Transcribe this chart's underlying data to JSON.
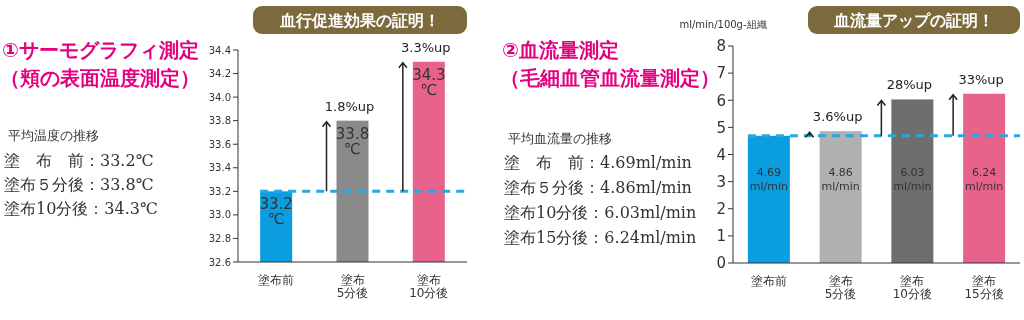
{
  "chart_data": [
    {
      "type": "bar",
      "title": "①サーモグラフィ測定",
      "subtitle": "（頬の表面温度測定）",
      "categories": [
        "塗布前",
        "塗布\n5分後",
        "塗布\n10分後"
      ],
      "values": [
        33.2,
        33.8,
        34.3
      ],
      "colors": [
        "#0a9de0",
        "#8a8a8a",
        "#e8638c"
      ],
      "value_labels": [
        "33.2\n℃",
        "33.8\n℃",
        "34.3\n℃"
      ],
      "ylim": [
        32.6,
        34.4
      ],
      "yticks": [
        {
          "value": 32.6,
          "label": "32.6"
        },
        {
          "value": 32.8,
          "label": "32.8"
        },
        {
          "value": 33,
          "label": "33.0"
        },
        {
          "value": 33.2,
          "label": "33.2"
        },
        {
          "value": 33.4,
          "label": "33.4"
        },
        {
          "value": 33.6,
          "label": "33.6"
        },
        {
          "value": 33.8,
          "label": "33.8"
        },
        {
          "value": 34,
          "label": "34.0"
        },
        {
          "value": 34.2,
          "label": "34.2"
        },
        {
          "value": 34.4,
          "label": "34.4"
        }
      ],
      "ref_lines": [
        {
          "axis": "y",
          "value": 33.2,
          "color": "#29a8e0",
          "line_style": "dashed"
        }
      ],
      "annotations": [
        "血行促進効果の証明！",
        "平均温度の推移",
        "塗　布　前：33.2℃",
        "塗布５分後：33.8℃",
        "塗布10分後：34.3℃",
        {
          "text": "1.8%up",
          "x": "塗布\n5分後",
          "y": 33.8
        },
        {
          "text": "3.3%up",
          "x": "塗布\n10分後",
          "y": 34.3
        }
      ]
    },
    {
      "type": "bar",
      "title": "②血流量測定",
      "subtitle": "（毛細血管血流量測定）",
      "ylabel": "ml/min/100g-組織",
      "categories": [
        "塗布前",
        "塗布\n5分後",
        "塗布\n10分後",
        "塗布\n15分後"
      ],
      "values": [
        4.69,
        4.86,
        6.03,
        6.24
      ],
      "colors": [
        "#0a9de0",
        "#b0b0b0",
        "#6e6e6e",
        "#e8638c"
      ],
      "value_labels": [
        "4.69\nml/min",
        "4.86\nml/min",
        "6.03\nml/min",
        "6.24\nml/min"
      ],
      "ylim": [
        0,
        8
      ],
      "yticks": [
        0,
        1,
        2,
        3,
        4,
        5,
        6,
        7,
        8
      ],
      "ref_lines": [
        {
          "axis": "y",
          "value": 4.69,
          "color": "#29a8e0",
          "line_style": "dashed"
        }
      ],
      "annotations": [
        "血流量アップの証明！",
        "平均血流量の推移",
        "塗　布　前：4.69ml/min",
        "塗布５分後：4.86ml/min",
        "塗布10分後：6.03ml/min",
        "塗布15分後：6.24ml/min",
        {
          "text": "3.6%up",
          "x": "塗布\n5分後",
          "y": 4.86
        },
        {
          "text": "28%up",
          "x": "塗布\n10分後",
          "y": 6.03
        },
        {
          "text": "33%up",
          "x": "塗布\n15分後",
          "y": 6.24
        }
      ]
    }
  ]
}
